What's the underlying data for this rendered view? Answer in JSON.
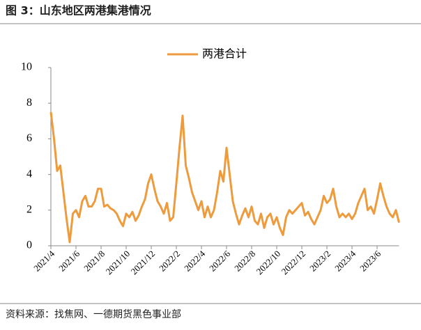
{
  "chart_data": {
    "type": "line",
    "title": "图 3：山东地区两港集港情况",
    "source": "资料来源：找焦网、一德期货黑色事业部",
    "categories": [
      "2021/4",
      null,
      null,
      null,
      null,
      null,
      null,
      null,
      "2021/6",
      null,
      null,
      null,
      null,
      null,
      null,
      null,
      "2021/8",
      null,
      null,
      null,
      null,
      null,
      null,
      null,
      "2021/10",
      null,
      null,
      null,
      null,
      null,
      null,
      null,
      "2021/12",
      null,
      null,
      null,
      null,
      null,
      null,
      null,
      "2022/2",
      null,
      null,
      null,
      null,
      null,
      null,
      null,
      "2022/4",
      null,
      null,
      null,
      null,
      null,
      null,
      null,
      "2022/6",
      null,
      null,
      null,
      null,
      null,
      null,
      null,
      "2022/8",
      null,
      null,
      null,
      null,
      null,
      null,
      null,
      "2022/10",
      null,
      null,
      null,
      null,
      null,
      null,
      null,
      "2022/12",
      null,
      null,
      null,
      null,
      null,
      null,
      null,
      "2023/2",
      null,
      null,
      null,
      null,
      null,
      null,
      null,
      "2023/4",
      null,
      null,
      null,
      null,
      null,
      null,
      null,
      "2023/6",
      null,
      null,
      null,
      null,
      null,
      null,
      null
    ],
    "series": [
      {
        "name": "两港合计",
        "color": "#ed9b3c",
        "values": [
          7.5,
          6,
          4.2,
          4.5,
          3,
          1.5,
          0.2,
          1.8,
          2,
          1.6,
          2.5,
          2.8,
          2.2,
          2.2,
          2.5,
          3.2,
          3.2,
          2.2,
          2.3,
          2.1,
          2.0,
          1.8,
          1.4,
          1.1,
          1.8,
          1.6,
          1.9,
          1.4,
          1.7,
          2.2,
          2.6,
          3.5,
          4.0,
          3.2,
          2.5,
          2.2,
          1.8,
          2.4,
          1.4,
          1.6,
          3.5,
          5.5,
          7.3,
          4.5,
          3.8,
          3.0,
          2.5,
          2.0,
          2.5,
          1.6,
          2.2,
          1.6,
          2.0,
          3.0,
          4.2,
          3.6,
          5.5,
          4.0,
          2.5,
          1.8,
          1.2,
          1.7,
          2.1,
          1.6,
          2.2,
          1.4,
          1.2,
          1.8,
          1.0,
          1.6,
          1.8,
          1.2,
          1.6,
          1.0,
          0.6,
          1.6,
          2.0,
          1.8,
          2.0,
          2.2,
          2.4,
          1.7,
          1.9,
          1.5,
          1.2,
          1.6,
          2.0,
          2.8,
          2.4,
          2.6,
          3.2,
          2.2,
          1.6,
          1.8,
          1.6,
          1.8,
          1.5,
          1.8,
          2.4,
          2.8,
          3.2,
          2.0,
          2.2,
          1.8,
          2.6,
          3.5,
          2.8,
          2.2,
          1.8,
          1.6,
          2.0,
          1.3
        ]
      }
    ],
    "ylim": [
      0,
      10
    ],
    "yticks": [
      0,
      2,
      4,
      6,
      8,
      10
    ]
  }
}
